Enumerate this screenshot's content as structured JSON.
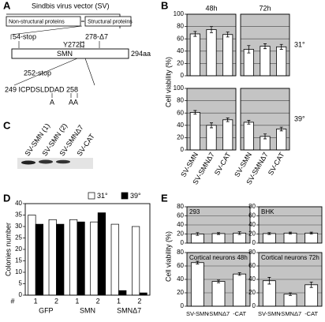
{
  "panel_labels": {
    "a": "A",
    "b": "B",
    "c": "C",
    "d": "D",
    "e": "E"
  },
  "diagram": {
    "title": "Sindbis virus vector (SV)",
    "nonstructural": "Non-structural proteins",
    "structural": "Structural proteins",
    "stop54": "54-stop",
    "y272c": "Y272C",
    "d7": "278-Δ7",
    "gene": "SMN",
    "length": "294aa",
    "stop252": "252-stop",
    "sequence": "249 ICPDSLDDAD 258",
    "mut1": "A",
    "mut2": "AA"
  },
  "blot": {
    "lanes": [
      "SV-SMN (1)",
      "SV-SMN (2)",
      "SV-SMNΔ7",
      "SV-CAT"
    ]
  },
  "chart_data": [
    {
      "type": "bar-grid",
      "ylabel": "Cell viability (%)",
      "categories": [
        "SV-SMN",
        "SV-SMNΔ7",
        "SV-CAT"
      ],
      "columns": [
        "48h",
        "72h"
      ],
      "rows": [
        "31°",
        "39°"
      ],
      "ylim": [
        0,
        100
      ],
      "yticks": [
        0,
        20,
        40,
        60,
        80,
        100
      ],
      "grid": true,
      "color": "#ffffff",
      "background": "#c4c4c4",
      "panels": [
        {
          "values": [
            68,
            75,
            67
          ],
          "errors": [
            4,
            5,
            4
          ]
        },
        {
          "values": [
            43,
            48,
            47
          ],
          "errors": [
            6,
            4,
            4
          ]
        },
        {
          "values": [
            61,
            40,
            49
          ],
          "errors": [
            3,
            4,
            3
          ]
        },
        {
          "values": [
            45,
            22,
            34
          ],
          "errors": [
            3,
            4,
            3
          ]
        }
      ]
    },
    {
      "type": "grouped-bar",
      "ylabel": "Colonies number",
      "xlabel": "#",
      "categories": [
        "1",
        "2",
        "1",
        "2",
        "1",
        "2"
      ],
      "groups": [
        "GFP",
        "SMN",
        "SMNΔ7"
      ],
      "ylim": [
        0,
        40
      ],
      "yticks": [
        0,
        5,
        10,
        15,
        20,
        25,
        30,
        35,
        40
      ],
      "series": [
        {
          "name": "31°",
          "color": "#ffffff",
          "values": [
            35,
            33,
            33,
            32,
            31,
            30
          ]
        },
        {
          "name": "39°",
          "color": "#000000",
          "values": [
            31,
            31,
            32,
            36,
            2,
            1
          ]
        }
      ]
    },
    {
      "type": "bar-grid",
      "ylabel": "Cell viability (%)",
      "categories": [
        "SV-SMN",
        "-SMNΔ7",
        "-CAT"
      ],
      "ylim": [
        0,
        80
      ],
      "yticks": [
        0,
        20,
        40,
        60,
        80
      ],
      "grid": true,
      "color": "#ffffff",
      "background": "#c4c4c4",
      "panels": [
        {
          "title": "293",
          "values": [
            20,
            21,
            22
          ],
          "errors": [
            3,
            2,
            3
          ]
        },
        {
          "title": "BHK",
          "values": [
            21,
            22,
            22
          ],
          "errors": [
            2,
            2,
            2
          ]
        },
        {
          "title": "Cortical neurons 48h",
          "values": [
            65,
            37,
            48
          ],
          "errors": [
            2,
            2,
            2
          ]
        },
        {
          "title": "Cortical neurons 72h",
          "values": [
            38,
            18,
            32
          ],
          "errors": [
            5,
            2,
            4
          ]
        }
      ]
    }
  ]
}
